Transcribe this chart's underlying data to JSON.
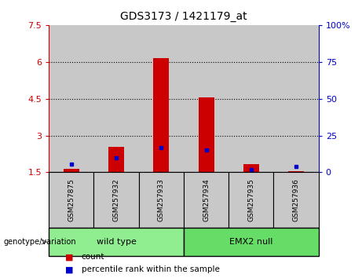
{
  "title": "GDS3173 / 1421179_at",
  "samples": [
    "GSM257875",
    "GSM257932",
    "GSM257933",
    "GSM257934",
    "GSM257935",
    "GSM257936"
  ],
  "red_values": [
    1.65,
    2.55,
    6.15,
    4.55,
    1.85,
    1.55
  ],
  "blue_values": [
    1.85,
    2.1,
    2.5,
    2.4,
    1.6,
    1.75
  ],
  "red_base": 1.5,
  "ylim": [
    1.5,
    7.5
  ],
  "yticks": [
    1.5,
    3.0,
    4.5,
    6.0,
    7.5
  ],
  "ytick_labels": [
    "1.5",
    "3",
    "4.5",
    "6",
    "7.5"
  ],
  "y2ticks": [
    0,
    25,
    50,
    75,
    100
  ],
  "y2tick_labels": [
    "0",
    "25",
    "50",
    "75",
    "100%"
  ],
  "gridlines": [
    3.0,
    4.5,
    6.0
  ],
  "bar_color": "#cc0000",
  "marker_color": "#0000cc",
  "left_tick_color": "#cc0000",
  "right_tick_color": "#0000cc",
  "col_bg_color": "#c8c8c8",
  "plot_bg": "#ffffff",
  "group_wt_color": "#90ee90",
  "group_emx2_color": "#66dd66",
  "legend_count_color": "#cc0000",
  "legend_pct_color": "#0000cc",
  "wt_cols": [
    0,
    1,
    2
  ],
  "emx2_cols": [
    3,
    4,
    5
  ],
  "wt_label": "wild type",
  "emx2_label": "EMX2 null",
  "genotype_label": "genotype/variation",
  "legend_count_label": "count",
  "legend_pct_label": "percentile rank within the sample",
  "bar_width": 0.35
}
